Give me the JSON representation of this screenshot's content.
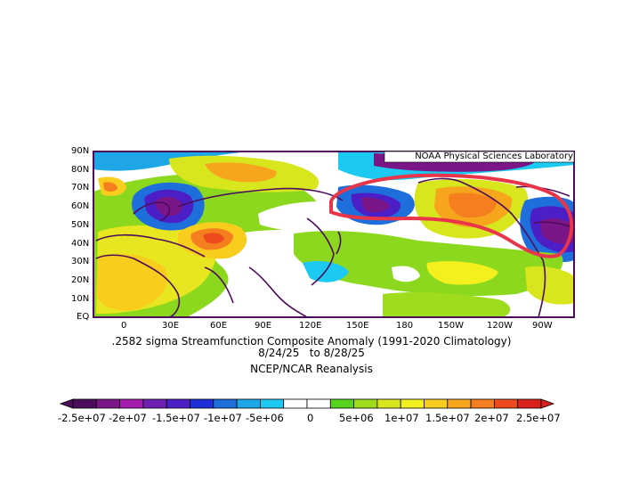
{
  "source_label": "NOAA Physical Sciences Laboratory",
  "y_ticks": [
    "90N",
    "80N",
    "70N",
    "60N",
    "50N",
    "40N",
    "30N",
    "20N",
    "10N",
    "EQ"
  ],
  "x_ticks": [
    "0",
    "30E",
    "60E",
    "90E",
    "120E",
    "150E",
    "180",
    "150W",
    "120W",
    "90W"
  ],
  "caption": {
    "line1": ".2582 sigma Streamfunction   Composite Anomaly (1991-2020 Climatology)",
    "line2": "8/24/25   to 8/28/25",
    "line3": "NCEP/NCAR Reanalysis"
  },
  "colorbar": {
    "colors": [
      "#4b0c5b",
      "#7a1687",
      "#a51eb0",
      "#6d1fb4",
      "#4c1ec6",
      "#1f2fd8",
      "#1e6fdc",
      "#1ea6e6",
      "#1cc9f0",
      "#ffffff",
      "#ffffff",
      "#55d31e",
      "#a0dc1e",
      "#d8e61e",
      "#f4f01e",
      "#f8cd1e",
      "#f8a51e",
      "#f57e1e",
      "#ef4a1e",
      "#d9221e"
    ],
    "labels": [
      "-2.5e+07",
      "-2e+07",
      "-1.5e+07",
      "-1e+07",
      "-5e+06",
      "0",
      "5e+06",
      "1e+07",
      "1.5e+07",
      "2e+07",
      "2.5e+07"
    ]
  },
  "annotation": "red outline drawn around northern Pacific / North America anomaly"
}
